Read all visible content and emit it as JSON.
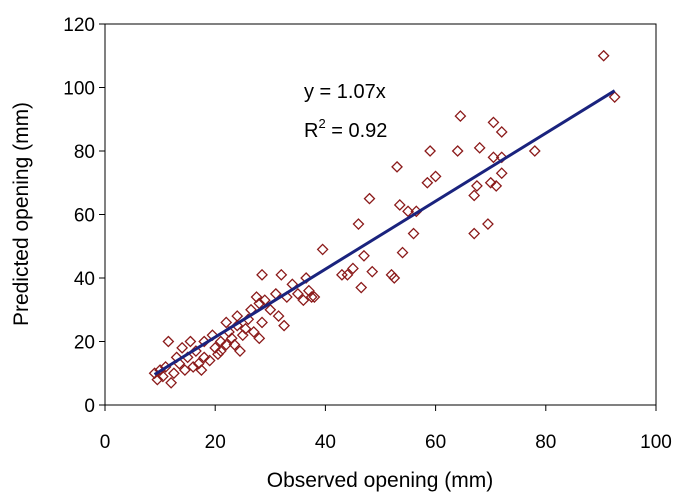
{
  "chart_data": {
    "type": "scatter",
    "title": "",
    "xlabel": "Observed opening (mm)",
    "ylabel": "Predicted opening (mm)",
    "xlim": [
      0,
      100
    ],
    "ylim": [
      0,
      120
    ],
    "x_ticks": [
      "0",
      "20",
      "40",
      "60",
      "80",
      "100"
    ],
    "y_ticks": [
      "0",
      "20",
      "40",
      "60",
      "80",
      "100",
      "120"
    ],
    "grid": false,
    "legend": "none",
    "marker_color": "#8b1a1a",
    "trend_color": "#1a237e",
    "equation": "y = 1.07x",
    "r2_prefix": "R",
    "r2_sup": "2",
    "r2_suffix": " = 0.92",
    "trendline": {
      "x": [
        9,
        92.5
      ],
      "y": [
        9.6,
        99
      ]
    },
    "points": [
      [
        9,
        10
      ],
      [
        9.5,
        8
      ],
      [
        10,
        11
      ],
      [
        10.5,
        9
      ],
      [
        11,
        12
      ],
      [
        11.5,
        20
      ],
      [
        12,
        7
      ],
      [
        12.5,
        10
      ],
      [
        13,
        15
      ],
      [
        13.5,
        13
      ],
      [
        14,
        18
      ],
      [
        14.5,
        11
      ],
      [
        15,
        15
      ],
      [
        15.5,
        20
      ],
      [
        16,
        12
      ],
      [
        16.5,
        17
      ],
      [
        17,
        13
      ],
      [
        17.5,
        11
      ],
      [
        18,
        20
      ],
      [
        18,
        15
      ],
      [
        19,
        14
      ],
      [
        19.5,
        22
      ],
      [
        20,
        18
      ],
      [
        20.5,
        16
      ],
      [
        21,
        17
      ],
      [
        21,
        20
      ],
      [
        22,
        26
      ],
      [
        22,
        19
      ],
      [
        22.5,
        23
      ],
      [
        23,
        21
      ],
      [
        23.5,
        19
      ],
      [
        24,
        28
      ],
      [
        24,
        25
      ],
      [
        24.5,
        17
      ],
      [
        25,
        22
      ],
      [
        25.5,
        24
      ],
      [
        26,
        27
      ],
      [
        26.5,
        30
      ],
      [
        27,
        23
      ],
      [
        27.5,
        34
      ],
      [
        28,
        32
      ],
      [
        28,
        21
      ],
      [
        28.5,
        26
      ],
      [
        28.5,
        41
      ],
      [
        29,
        33
      ],
      [
        30,
        30
      ],
      [
        31,
        35
      ],
      [
        31.5,
        28
      ],
      [
        32,
        41
      ],
      [
        32.5,
        25
      ],
      [
        33,
        34
      ],
      [
        34,
        38
      ],
      [
        35,
        35
      ],
      [
        36,
        33
      ],
      [
        36.5,
        40
      ],
      [
        37,
        36
      ],
      [
        37.5,
        34
      ],
      [
        38,
        34
      ],
      [
        39.5,
        49
      ],
      [
        43,
        41
      ],
      [
        44,
        41
      ],
      [
        45,
        43
      ],
      [
        46,
        57
      ],
      [
        46.5,
        37
      ],
      [
        47,
        47
      ],
      [
        48,
        65
      ],
      [
        48.5,
        42
      ],
      [
        52,
        41
      ],
      [
        52.5,
        40
      ],
      [
        53,
        75
      ],
      [
        53.5,
        63
      ],
      [
        54,
        48
      ],
      [
        55,
        61
      ],
      [
        56,
        54
      ],
      [
        56.5,
        61
      ],
      [
        58.5,
        70
      ],
      [
        59,
        80
      ],
      [
        60,
        72
      ],
      [
        64,
        80
      ],
      [
        64.5,
        91
      ],
      [
        67,
        54
      ],
      [
        67,
        66
      ],
      [
        67.5,
        69
      ],
      [
        68,
        81
      ],
      [
        69.5,
        57
      ],
      [
        70,
        70
      ],
      [
        70.5,
        78
      ],
      [
        70.5,
        89
      ],
      [
        71,
        69
      ],
      [
        72,
        86
      ],
      [
        72,
        78
      ],
      [
        72,
        73
      ],
      [
        78,
        80
      ],
      [
        90.5,
        110
      ],
      [
        92.5,
        97
      ]
    ]
  }
}
